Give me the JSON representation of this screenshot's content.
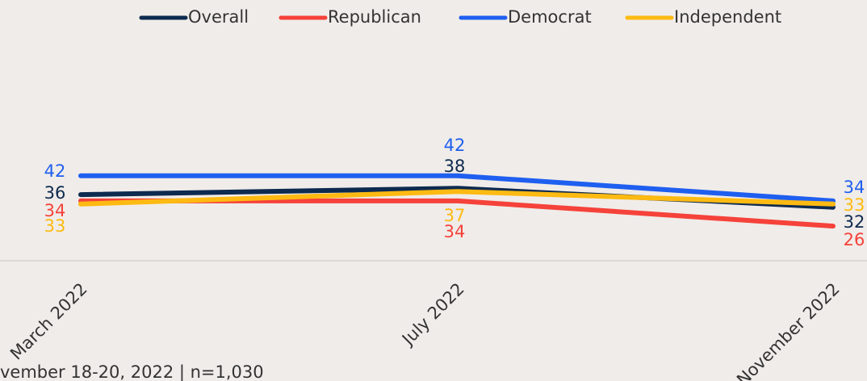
{
  "chart_data": {
    "type": "line",
    "categories": [
      "March 2022",
      "July 2022",
      "November 2022"
    ],
    "series": [
      {
        "name": "Overall",
        "color": "#0d2a4f",
        "values": [
          36,
          38,
          32
        ]
      },
      {
        "name": "Republican",
        "color": "#f5423a",
        "values": [
          34,
          34,
          26
        ]
      },
      {
        "name": "Democrat",
        "color": "#1f5ff0",
        "values": [
          42,
          42,
          34
        ]
      },
      {
        "name": "Independent",
        "color": "#fdba12",
        "values": [
          33,
          37,
          33
        ]
      }
    ],
    "ylim": [
      15,
      60
    ],
    "footnote": "vember 18-20, 2022 | n=1,030",
    "legend": "top"
  }
}
